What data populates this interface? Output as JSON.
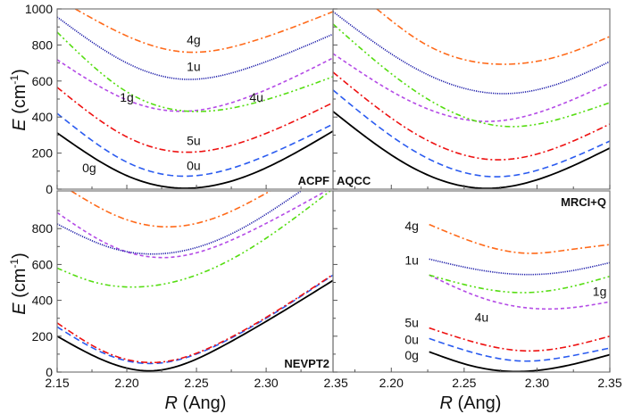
{
  "chart_data": {
    "type": "line",
    "title": "",
    "xlabel": "R (Ang)",
    "xlabel_italic_part": "R",
    "xlabel_rest": " (Ang)",
    "ylabel": "E (cm-1)",
    "ylabel_italic_part": "E",
    "ylabel_rest": " (cm",
    "ylabel_sup": "-1",
    "ylabel_close": ")",
    "grid": false,
    "series_styles": {
      "0g": {
        "color": "#000000",
        "dash": "solid"
      },
      "0u": {
        "color": "#2a5bf0",
        "dash": "dash"
      },
      "5u": {
        "color": "#ee1111",
        "dash": "dashdot"
      },
      "4u": {
        "color": "#b44be6",
        "dash": "shortdash"
      },
      "1g": {
        "color": "#55dd11",
        "dash": "dashdotdot"
      },
      "1u": {
        "color": "#1a1aa8",
        "dash": "dot"
      },
      "4g": {
        "color": "#ff6a1a",
        "dash": "dashdot"
      }
    },
    "panels": [
      {
        "name": "ACPF",
        "position": "top-left",
        "xlim": [
          2.15,
          2.348
        ],
        "ylim": [
          0,
          1000
        ],
        "xticks": [
          2.15,
          2.2,
          2.25,
          2.3,
          2.35
        ],
        "xtick_labels": [],
        "yticks": [
          0,
          200,
          400,
          600,
          800,
          1000
        ],
        "ytick_labels": [
          "0",
          "200",
          "400",
          "600",
          "800",
          "1000"
        ],
        "curve_labels": [
          {
            "text": "4g",
            "x": 2.248,
            "y": 830
          },
          {
            "text": "1u",
            "x": 2.248,
            "y": 680
          },
          {
            "text": "1g",
            "x": 2.2,
            "y": 510
          },
          {
            "text": "4u",
            "x": 2.293,
            "y": 510
          },
          {
            "text": "5u",
            "x": 2.248,
            "y": 270
          },
          {
            "text": "0u",
            "x": 2.248,
            "y": 130
          },
          {
            "text": "0g",
            "x": 2.173,
            "y": 120
          }
        ],
        "series": [
          {
            "name": "0g",
            "x": [
              2.15,
              2.2,
              2.242,
              2.29,
              2.348
            ],
            "y": [
              312,
              75,
              5,
              85,
              322
            ]
          },
          {
            "name": "0u",
            "x": [
              2.15,
              2.2,
              2.242,
              2.29,
              2.348
            ],
            "y": [
              420,
              150,
              72,
              155,
              361
            ]
          },
          {
            "name": "5u",
            "x": [
              2.15,
              2.2,
              2.242,
              2.29,
              2.348
            ],
            "y": [
              565,
              290,
              205,
              280,
              480
            ]
          },
          {
            "name": "4u",
            "x": [
              2.15,
              2.2,
              2.24,
              2.29,
              2.348
            ],
            "y": [
              718,
              495,
              432,
              520,
              728
            ]
          },
          {
            "name": "1g",
            "x": [
              2.15,
              2.2,
              2.245,
              2.29,
              2.348
            ],
            "y": [
              871,
              540,
              432,
              475,
              624
            ]
          },
          {
            "name": "1u",
            "x": [
              2.15,
              2.2,
              2.24,
              2.29,
              2.348
            ],
            "y": [
              955,
              700,
              610,
              680,
              860
            ]
          },
          {
            "name": "4g",
            "x": [
              2.163,
              2.2,
              2.244,
              2.29,
              2.348
            ],
            "y": [
              1000,
              850,
              760,
              820,
              985
            ]
          }
        ]
      },
      {
        "name": "AQCC",
        "position": "top-right",
        "xlim": [
          2.16,
          2.35
        ],
        "ylim": [
          0,
          1000
        ],
        "xticks": [
          2.2,
          2.25,
          2.3,
          2.35
        ],
        "xtick_labels": [],
        "yticks": [
          0,
          200,
          400,
          600,
          800,
          1000
        ],
        "ytick_labels": [],
        "curve_labels": [],
        "series": [
          {
            "name": "0g",
            "x": [
              2.16,
              2.21,
              2.262,
              2.31,
              2.35
            ],
            "y": [
              431,
              140,
              5,
              80,
              228
            ]
          },
          {
            "name": "0u",
            "x": [
              2.16,
              2.21,
              2.273,
              2.31,
              2.35
            ],
            "y": [
              550,
              240,
              69,
              130,
              267
            ]
          },
          {
            "name": "5u",
            "x": [
              2.16,
              2.21,
              2.273,
              2.31,
              2.35
            ],
            "y": [
              649,
              340,
              163,
              220,
              361
            ]
          },
          {
            "name": "4u",
            "x": [
              2.16,
              2.21,
              2.268,
              2.31,
              2.35
            ],
            "y": [
              752,
              500,
              376,
              450,
              589
            ]
          },
          {
            "name": "1g",
            "x": [
              2.16,
              2.21,
              2.283,
              2.32,
              2.35
            ],
            "y": [
              916,
              580,
              347,
              400,
              480
            ]
          },
          {
            "name": "1u",
            "x": [
              2.16,
              2.21,
              2.276,
              2.32,
              2.35
            ],
            "y": [
              985,
              700,
              530,
              600,
              708
            ]
          },
          {
            "name": "4g",
            "x": [
              2.19,
              2.22,
              2.276,
              2.32,
              2.35
            ],
            "y": [
              1000,
              820,
              693,
              750,
              847
            ]
          }
        ]
      },
      {
        "name": "NEVPT2",
        "position": "bottom-left",
        "xlim": [
          2.15,
          2.348
        ],
        "ylim": [
          0,
          1010
        ],
        "xticks": [
          2.15,
          2.2,
          2.25,
          2.3,
          2.35
        ],
        "xtick_labels": [
          "2.15",
          "2.20",
          "2.25",
          "2.30",
          "2.35"
        ],
        "yticks": [
          0,
          200,
          400,
          600,
          800
        ],
        "ytick_labels": [
          "0",
          "200",
          "400",
          "600",
          "800"
        ],
        "curve_labels": [],
        "series": [
          {
            "name": "0g",
            "x": [
              2.15,
              2.185,
              2.218,
              2.27,
              2.348
            ],
            "y": [
              200,
              60,
              7,
              150,
              511
            ]
          },
          {
            "name": "0u",
            "x": [
              2.15,
              2.185,
              2.222,
              2.27,
              2.348
            ],
            "y": [
              252,
              100,
              49,
              170,
              541
            ]
          },
          {
            "name": "5u",
            "x": [
              2.15,
              2.185,
              2.225,
              2.27,
              2.348
            ],
            "y": [
              274,
              110,
              56,
              175,
              544
            ]
          },
          {
            "name": "1g",
            "x": [
              2.15,
              2.175,
              2.203,
              2.28,
              2.346
            ],
            "y": [
              580,
              505,
              474,
              650,
              1010
            ]
          },
          {
            "name": "4u",
            "x": [
              2.15,
              2.19,
              2.229,
              2.29,
              2.343
            ],
            "y": [
              889,
              700,
              639,
              790,
              1010
            ]
          },
          {
            "name": "1u",
            "x": [
              2.15,
              2.19,
              2.223,
              2.28,
              2.325
            ],
            "y": [
              826,
              690,
              659,
              790,
              1010
            ]
          },
          {
            "name": "4g",
            "x": [
              2.16,
              2.19,
              2.227,
              2.27,
              2.303
            ],
            "y": [
              1010,
              880,
              810,
              880,
              1010
            ]
          }
        ]
      },
      {
        "name": "MRCI+Q",
        "position": "bottom-right",
        "xlim": [
          2.16,
          2.35
        ],
        "ylim": [
          0,
          1010
        ],
        "xticks": [
          2.2,
          2.25,
          2.3,
          2.35
        ],
        "xtick_labels": [
          "2.20",
          "2.25",
          "2.30",
          "2.35"
        ],
        "yticks": [
          0,
          200,
          400,
          600,
          800
        ],
        "ytick_labels": [],
        "curve_labels": [
          {
            "text": "4g",
            "x": 2.214,
            "y": 815
          },
          {
            "text": "1u",
            "x": 2.214,
            "y": 625
          },
          {
            "text": "1g",
            "x": 2.343,
            "y": 450
          },
          {
            "text": "4u",
            "x": 2.262,
            "y": 305
          },
          {
            "text": "5u",
            "x": 2.214,
            "y": 275
          },
          {
            "text": "0u",
            "x": 2.214,
            "y": 182
          },
          {
            "text": "0g",
            "x": 2.214,
            "y": 95
          }
        ],
        "series": [
          {
            "name": "0g",
            "x": [
              2.226,
              2.255,
              2.285,
              2.32,
              2.35
            ],
            "y": [
              113,
              35,
              3,
              35,
              97
            ]
          },
          {
            "name": "0u",
            "x": [
              2.226,
              2.26,
              2.293,
              2.32,
              2.35
            ],
            "y": [
              187,
              100,
              61,
              85,
              134
            ]
          },
          {
            "name": "5u",
            "x": [
              2.226,
              2.26,
              2.293,
              2.32,
              2.35
            ],
            "y": [
              246,
              160,
              118,
              140,
              200
            ]
          },
          {
            "name": "4u",
            "x": [
              2.226,
              2.26,
              2.305,
              2.33,
              2.35
            ],
            "y": [
              541,
              420,
              352,
              365,
              392
            ]
          },
          {
            "name": "1g",
            "x": [
              2.226,
              2.26,
              2.291,
              2.32,
              2.35
            ],
            "y": [
              541,
              470,
              443,
              470,
              534
            ]
          },
          {
            "name": "1u",
            "x": [
              2.226,
              2.26,
              2.297,
              2.32,
              2.35
            ],
            "y": [
              630,
              570,
              544,
              560,
              610
            ]
          },
          {
            "name": "4g",
            "x": [
              2.226,
              2.26,
              2.297,
              2.32,
              2.35
            ],
            "y": [
              823,
              715,
              662,
              680,
              711
            ]
          }
        ]
      }
    ]
  }
}
